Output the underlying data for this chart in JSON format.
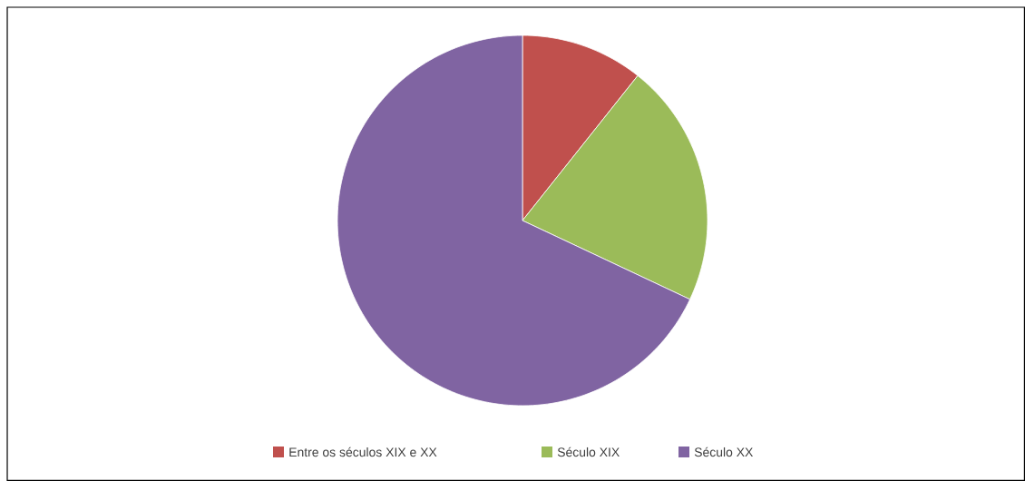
{
  "chart_data": {
    "type": "pie",
    "categories": [
      "Entre os séculos XIX e XX",
      "Século XIX",
      "Século XX"
    ],
    "values": [
      10.7,
      21.3,
      68.0
    ],
    "colors": [
      "#c0504d",
      "#9bbb59",
      "#8064a2"
    ],
    "legend": "bottom"
  }
}
